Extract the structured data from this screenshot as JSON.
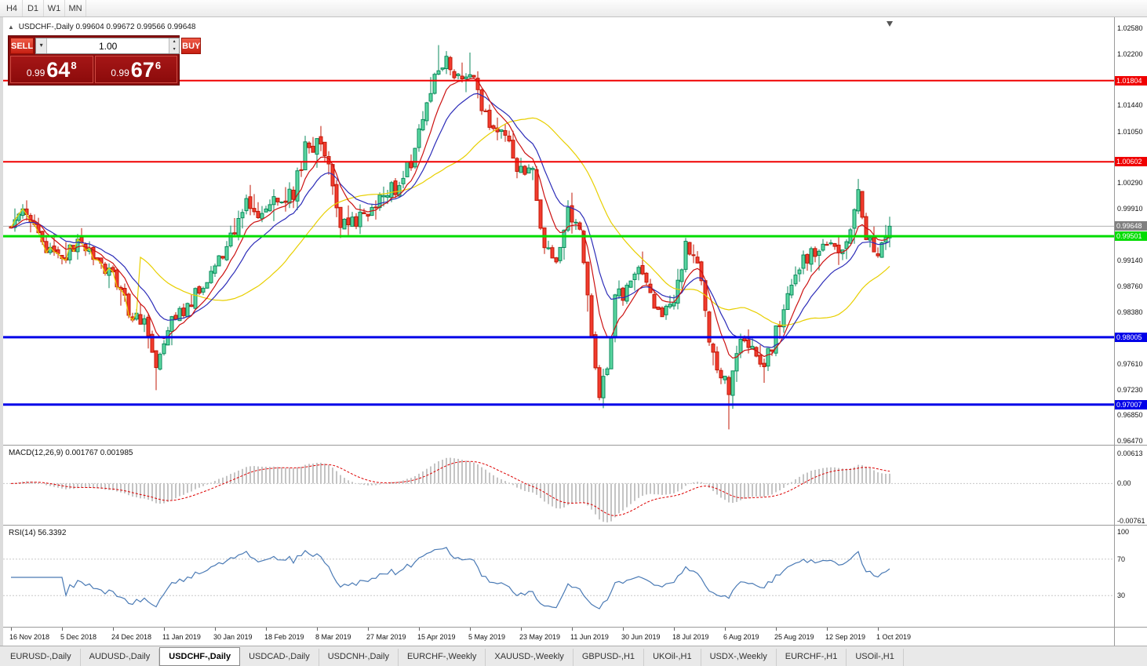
{
  "toolbar": {
    "timeframes": [
      "H4",
      "D1",
      "W1",
      "MN"
    ]
  },
  "icons": {
    "collapse": "▲",
    "dropdown": "▾",
    "spin_up": "▴",
    "spin_down": "▾"
  },
  "chart": {
    "title": "USDCHF-,Daily",
    "ohlc_line": "0.99604 0.99672 0.99566 0.99648"
  },
  "trade_panel": {
    "sell_label": "SELL",
    "buy_label": "BUY",
    "volume": "1.00",
    "sell_price_small": "0.99",
    "sell_price_big": "64",
    "sell_price_sup": "8",
    "buy_price_small": "0.99",
    "buy_price_big": "67",
    "buy_price_sup": "6"
  },
  "macd": {
    "label": "MACD(12,26,9)",
    "values": "0.001767 0.001985",
    "axis_labels": [
      "0.00613",
      "0.00",
      "-0.00761"
    ]
  },
  "rsi": {
    "label": "RSI(14)",
    "value": "56.3392",
    "axis_labels": [
      "100",
      "70",
      "30"
    ],
    "levels": [
      70,
      30
    ]
  },
  "date_axis": [
    "16 Nov 2018",
    "5 Dec 2018",
    "24 Dec 2018",
    "11 Jan 2019",
    "30 Jan 2019",
    "18 Feb 2019",
    "8 Mar 2019",
    "27 Mar 2019",
    "15 Apr 2019",
    "5 May 2019",
    "23 May 2019",
    "11 Jun 2019",
    "30 Jun 2019",
    "18 Jul 2019",
    "6 Aug 2019",
    "25 Aug 2019",
    "12 Sep 2019",
    "1 Oct 2019"
  ],
  "tabs": [
    {
      "label": "EURUSD-,Daily",
      "active": false
    },
    {
      "label": "AUDUSD-,Daily",
      "active": false
    },
    {
      "label": "USDCHF-,Daily",
      "active": true
    },
    {
      "label": "USDCAD-,Daily",
      "active": false
    },
    {
      "label": "USDCNH-,Daily",
      "active": false
    },
    {
      "label": "EURCHF-,Weekly",
      "active": false
    },
    {
      "label": "XAUUSD-,Weekly",
      "active": false
    },
    {
      "label": "GBPUSD-,H1",
      "active": false
    },
    {
      "label": "UKOil-,H1",
      "active": false
    },
    {
      "label": "USDX-,Weekly",
      "active": false
    },
    {
      "label": "EURCHF-,H1",
      "active": false
    },
    {
      "label": "USOil-,H1",
      "active": false
    }
  ],
  "colors": {
    "bull_fill": "#5ad6a0",
    "bull_border": "#0b8a5c",
    "bear_fill": "#f23b2e",
    "bear_border": "#c21807",
    "current_line": "#b0b0b0",
    "badge_current": "#808080",
    "macd_hist": "#b5b5b5",
    "macd_signal": "#dd0000",
    "rsi_line": "#4a7ab5",
    "indicator_level": "#c8c8c8"
  },
  "chart_data": {
    "type": "candlestick",
    "symbol": "USDCHF",
    "timeframe": "Daily",
    "ohlc_current": {
      "open": 0.99604,
      "high": 0.99672,
      "low": 0.99566,
      "close": 0.99648
    },
    "y_range": [
      0.9647,
      1.0258
    ],
    "y_ticks": [
      1.0258,
      1.022,
      1.0144,
      1.0105,
      1.0029,
      0.9991,
      0.9914,
      0.9876,
      0.9838,
      0.9761,
      0.9723,
      0.9685,
      0.9647
    ],
    "current_price": 0.99648,
    "last_close": 0.99648,
    "candle_count": 225,
    "levels": [
      {
        "price": 1.01804,
        "color": "#f00000",
        "width": 2
      },
      {
        "price": 1.00602,
        "color": "#f00000",
        "width": 2
      },
      {
        "price": 0.99501,
        "color": "#00dc00",
        "width": 3
      },
      {
        "price": 0.98005,
        "color": "#0000e8",
        "width": 3
      },
      {
        "price": 0.97007,
        "color": "#0000e8",
        "width": 3
      }
    ],
    "path_anchors": [
      [
        0,
        0.9965
      ],
      [
        4,
        0.9985
      ],
      [
        9,
        0.9935
      ],
      [
        13,
        0.9917
      ],
      [
        18,
        0.9942
      ],
      [
        22,
        0.9917
      ],
      [
        26,
        0.9893
      ],
      [
        30,
        0.984
      ],
      [
        34,
        0.982
      ],
      [
        37,
        0.976
      ],
      [
        40,
        0.9815
      ],
      [
        44,
        0.9838
      ],
      [
        48,
        0.987
      ],
      [
        52,
        0.9903
      ],
      [
        56,
        0.995
      ],
      [
        60,
        0.9998
      ],
      [
        64,
        0.9985
      ],
      [
        68,
        1.0003
      ],
      [
        72,
        1.0015
      ],
      [
        75,
        1.008
      ],
      [
        78,
        1.0085
      ],
      [
        81,
        1.0066
      ],
      [
        84,
        0.9963
      ],
      [
        88,
        0.9975
      ],
      [
        91,
        0.9988
      ],
      [
        94,
        1.001
      ],
      [
        98,
        1.0022
      ],
      [
        102,
        1.0062
      ],
      [
        105,
        1.0125
      ],
      [
        108,
        1.019
      ],
      [
        111,
        1.021
      ],
      [
        114,
        1.0188
      ],
      [
        117,
        1.0198
      ],
      [
        120,
        1.0146
      ],
      [
        123,
        1.0108
      ],
      [
        126,
        1.0095
      ],
      [
        129,
        1.0056
      ],
      [
        133,
        1.0048
      ],
      [
        136,
        0.993
      ],
      [
        139,
        0.9907
      ],
      [
        142,
        0.9985
      ],
      [
        145,
        0.9963
      ],
      [
        148,
        0.9805
      ],
      [
        150,
        0.9715
      ],
      [
        152,
        0.976
      ],
      [
        154,
        0.9858
      ],
      [
        157,
        0.987
      ],
      [
        160,
        0.9905
      ],
      [
        163,
        0.986
      ],
      [
        166,
        0.9838
      ],
      [
        169,
        0.9848
      ],
      [
        172,
        0.994
      ],
      [
        175,
        0.9918
      ],
      [
        178,
        0.979
      ],
      [
        181,
        0.9745
      ],
      [
        183,
        0.9722
      ],
      [
        186,
        0.98
      ],
      [
        189,
        0.979
      ],
      [
        192,
        0.9756
      ],
      [
        196,
        0.9825
      ],
      [
        199,
        0.987
      ],
      [
        202,
        0.9917
      ],
      [
        205,
        0.9928
      ],
      [
        208,
        0.994
      ],
      [
        211,
        0.9917
      ],
      [
        214,
        0.995
      ],
      [
        216,
        1.0015
      ],
      [
        218,
        0.995
      ],
      [
        221,
        0.9928
      ],
      [
        224,
        0.99648
      ]
    ],
    "wick_spikes_low": [
      [
        37,
        0.9722
      ],
      [
        150,
        0.9707
      ],
      [
        183,
        0.9664
      ],
      [
        192,
        0.9733
      ]
    ],
    "wick_spikes_high": [
      [
        109,
        1.0233
      ],
      [
        117,
        1.0222
      ],
      [
        216,
        1.0031
      ]
    ],
    "moving_averages": [
      {
        "type": "sma",
        "period": 34,
        "color": "#e8cf00"
      },
      {
        "type": "ema",
        "period": 16,
        "color": "#2c2cb8"
      },
      {
        "type": "ema",
        "period": 8,
        "color": "#cc1111"
      }
    ],
    "indicators": [
      {
        "name": "MACD",
        "params": "12,26,9",
        "axis_max": 0.00613,
        "axis_min": -0.00761
      },
      {
        "name": "RSI",
        "params": "14",
        "levels": [
          70,
          30
        ]
      }
    ]
  }
}
